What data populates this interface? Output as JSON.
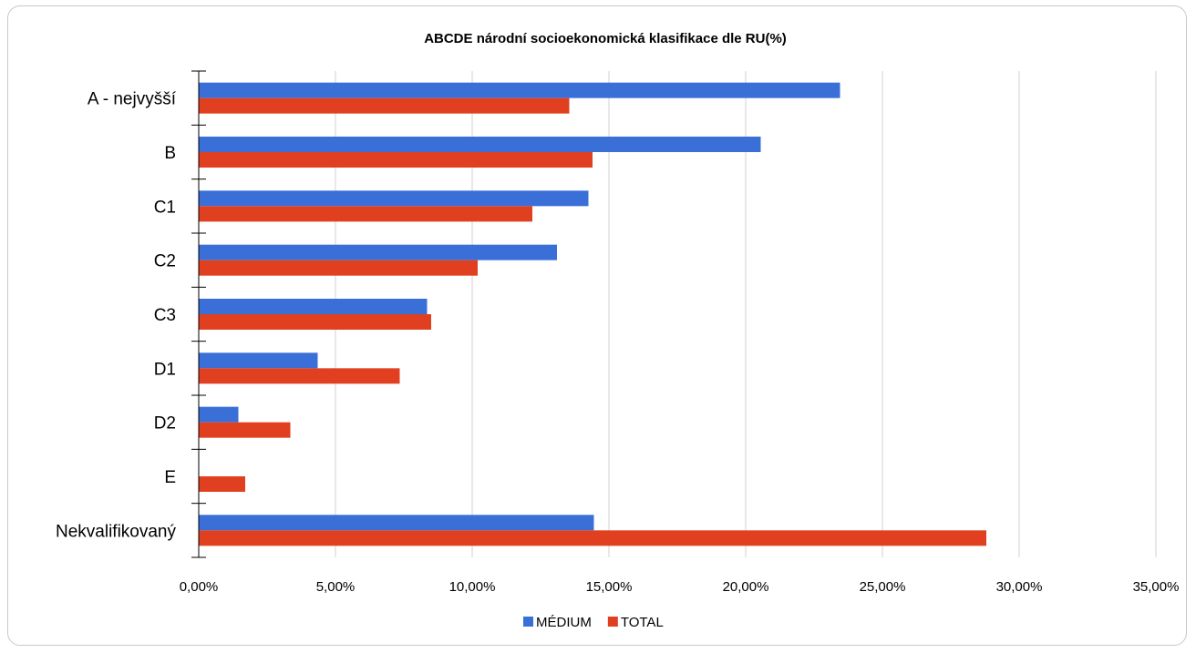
{
  "chart_data": {
    "type": "bar",
    "orientation": "horizontal",
    "title": "ABCDE národní socioekonomická klasifikace dle RU(%)",
    "categories": [
      "A - nejvyšší",
      "B",
      "C1",
      "C2",
      "C3",
      "D1",
      "D2",
      "E",
      "Nekvalifikovaný"
    ],
    "series": [
      {
        "name": "MÉDIUM",
        "color": "#3a6fd8",
        "values": [
          23.45,
          20.55,
          14.25,
          13.1,
          8.35,
          4.35,
          1.45,
          0.0,
          14.45
        ]
      },
      {
        "name": "TOTAL",
        "color": "#e04020",
        "values": [
          13.55,
          14.4,
          12.2,
          10.2,
          8.5,
          7.35,
          3.35,
          1.7,
          28.8
        ]
      }
    ],
    "xlim": [
      0,
      35
    ],
    "xticks": [
      "0,00%",
      "5,00%",
      "10,00%",
      "15,00%",
      "20,00%",
      "25,00%",
      "30,00%",
      "35,00%"
    ],
    "grid": true,
    "legend_position": "bottom"
  }
}
